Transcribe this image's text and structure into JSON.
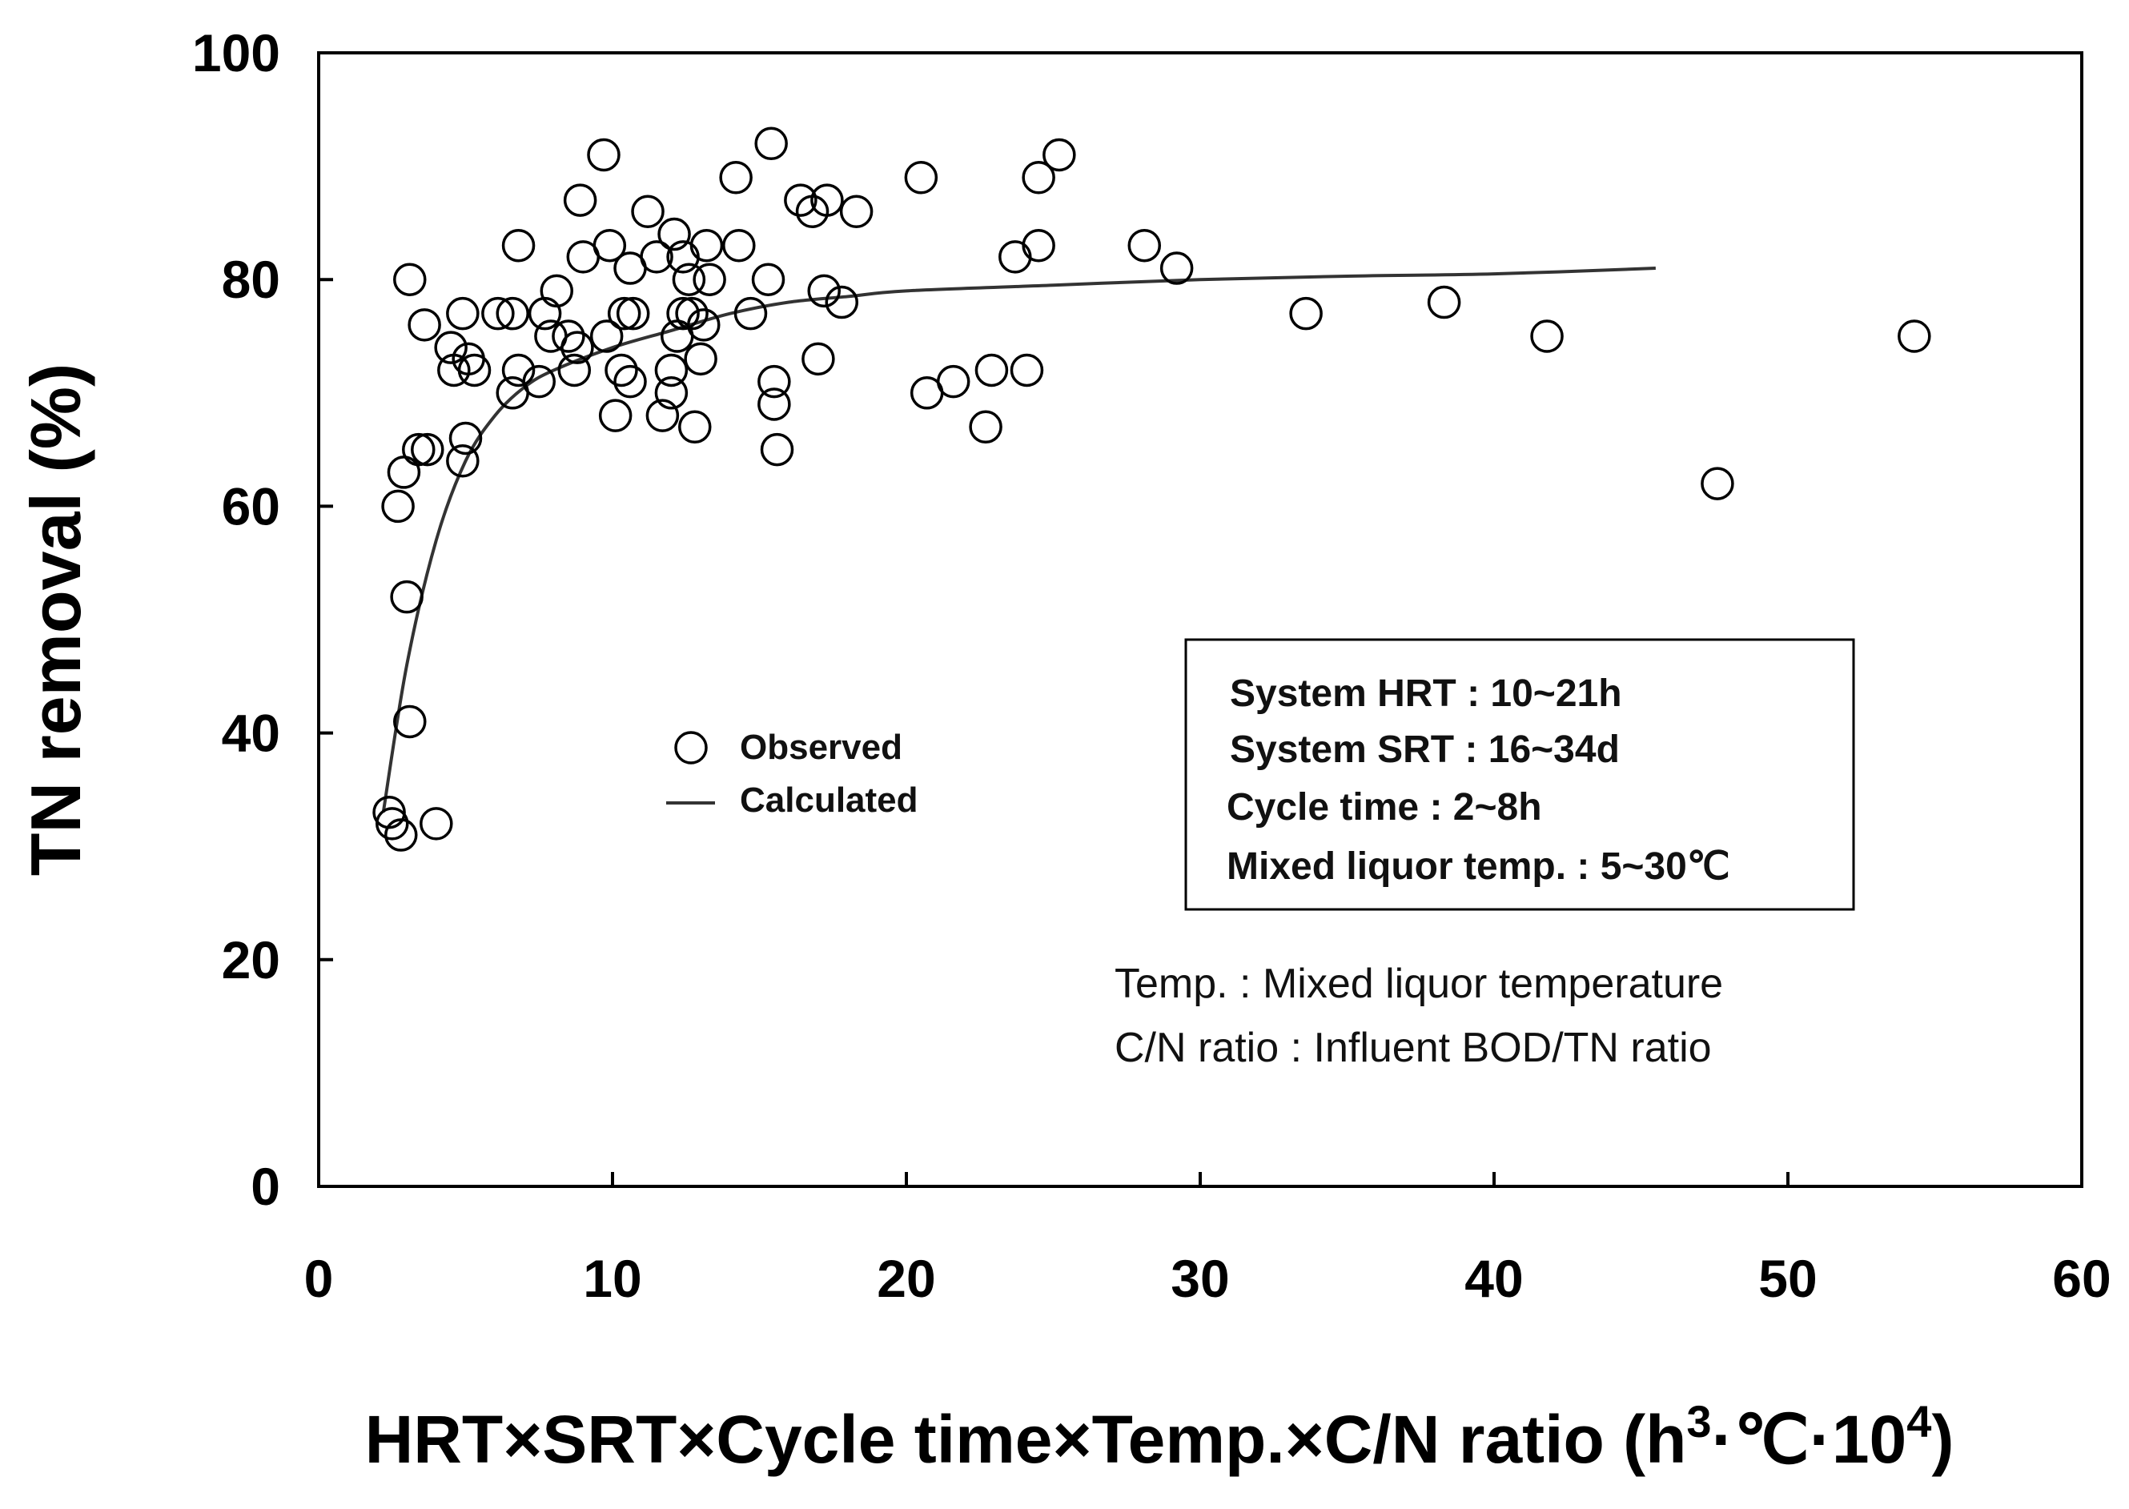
{
  "chart_data": {
    "type": "scatter",
    "title": "",
    "xlabel": {
      "main": "HRT×SRT×Cycle time×Temp.×C/N ratio (h",
      "sup1": "3",
      "mid": "·℃·10",
      "sup2": "4",
      "end": ")"
    },
    "ylabel": "TN removal (%)",
    "xlim": [
      0,
      60
    ],
    "ylim": [
      0,
      100
    ],
    "xticks": [
      "0",
      "10",
      "20",
      "30",
      "40",
      "50",
      "60"
    ],
    "yticks": [
      "0",
      "20",
      "40",
      "60",
      "80",
      "100"
    ],
    "legend": {
      "position": "center-left",
      "observed_label": "Observed",
      "calculated_label": "Calculated"
    },
    "series": [
      {
        "name": "Observed",
        "marker": "open-circle",
        "points": [
          [
            2.4,
            33
          ],
          [
            2.5,
            32
          ],
          [
            2.8,
            31
          ],
          [
            4.0,
            32
          ],
          [
            3.1,
            41
          ],
          [
            3.0,
            52
          ],
          [
            2.7,
            60
          ],
          [
            2.9,
            63
          ],
          [
            3.4,
            65
          ],
          [
            3.7,
            65
          ],
          [
            4.9,
            64
          ],
          [
            5.0,
            66
          ],
          [
            3.1,
            80
          ],
          [
            3.6,
            76
          ],
          [
            4.5,
            74
          ],
          [
            4.6,
            72
          ],
          [
            5.1,
            73
          ],
          [
            5.3,
            72
          ],
          [
            4.9,
            77
          ],
          [
            6.1,
            77
          ],
          [
            6.6,
            70
          ],
          [
            6.6,
            77
          ],
          [
            6.8,
            72
          ],
          [
            6.8,
            83
          ],
          [
            7.5,
            71
          ],
          [
            7.7,
            77
          ],
          [
            7.9,
            75
          ],
          [
            8.1,
            79
          ],
          [
            8.5,
            75
          ],
          [
            8.7,
            72
          ],
          [
            8.8,
            74
          ],
          [
            8.9,
            87
          ],
          [
            9.0,
            82
          ],
          [
            9.7,
            91
          ],
          [
            9.8,
            75
          ],
          [
            9.9,
            83
          ],
          [
            10.1,
            68
          ],
          [
            10.3,
            72
          ],
          [
            10.4,
            77
          ],
          [
            10.6,
            71
          ],
          [
            10.6,
            81
          ],
          [
            10.7,
            77
          ],
          [
            11.2,
            86
          ],
          [
            11.5,
            82
          ],
          [
            11.7,
            68
          ],
          [
            12.0,
            70
          ],
          [
            12.0,
            72
          ],
          [
            12.1,
            84
          ],
          [
            12.2,
            75
          ],
          [
            12.4,
            77
          ],
          [
            12.4,
            82
          ],
          [
            12.6,
            80
          ],
          [
            12.7,
            77
          ],
          [
            12.8,
            67
          ],
          [
            13.0,
            73
          ],
          [
            13.1,
            76
          ],
          [
            13.2,
            83
          ],
          [
            13.3,
            80
          ],
          [
            14.2,
            89
          ],
          [
            14.3,
            83
          ],
          [
            14.7,
            77
          ],
          [
            15.3,
            80
          ],
          [
            15.4,
            92
          ],
          [
            15.5,
            69
          ],
          [
            15.5,
            71
          ],
          [
            15.6,
            65
          ],
          [
            16.4,
            87
          ],
          [
            16.8,
            86
          ],
          [
            17.0,
            73
          ],
          [
            17.2,
            79
          ],
          [
            17.3,
            87
          ],
          [
            17.8,
            78
          ],
          [
            18.3,
            86
          ],
          [
            20.5,
            89
          ],
          [
            20.7,
            70
          ],
          [
            21.6,
            71
          ],
          [
            22.7,
            67
          ],
          [
            22.9,
            72
          ],
          [
            23.7,
            82
          ],
          [
            24.1,
            72
          ],
          [
            24.5,
            89
          ],
          [
            24.5,
            83
          ],
          [
            25.2,
            91
          ],
          [
            28.1,
            83
          ],
          [
            29.2,
            81
          ],
          [
            33.6,
            77
          ],
          [
            38.3,
            78
          ],
          [
            41.8,
            75
          ],
          [
            47.6,
            62
          ],
          [
            54.3,
            75
          ]
        ]
      },
      {
        "name": "Calculated",
        "marker": "line",
        "points": [
          [
            2.2,
            33
          ],
          [
            3.0,
            46
          ],
          [
            4.0,
            57
          ],
          [
            5.0,
            64
          ],
          [
            6.0,
            68
          ],
          [
            7.0,
            70.5
          ],
          [
            8.0,
            72
          ],
          [
            10.0,
            74
          ],
          [
            12.0,
            75.5
          ],
          [
            14.0,
            77
          ],
          [
            16.0,
            78
          ],
          [
            18.0,
            78.5
          ],
          [
            20.0,
            79
          ],
          [
            25.0,
            79.5
          ],
          [
            30.0,
            80
          ],
          [
            35.0,
            80.3
          ],
          [
            40.0,
            80.5
          ],
          [
            45.5,
            81
          ]
        ]
      }
    ],
    "conditions_box": [
      "System HRT : 10~21h",
      "System SRT : 16~34d",
      "Cycle time : 2~8h",
      "Mixed liquor temp. : 5~30℃"
    ],
    "notes": [
      "Temp. : Mixed liquor temperature",
      "C/N ratio : Influent BOD/TN ratio"
    ]
  }
}
